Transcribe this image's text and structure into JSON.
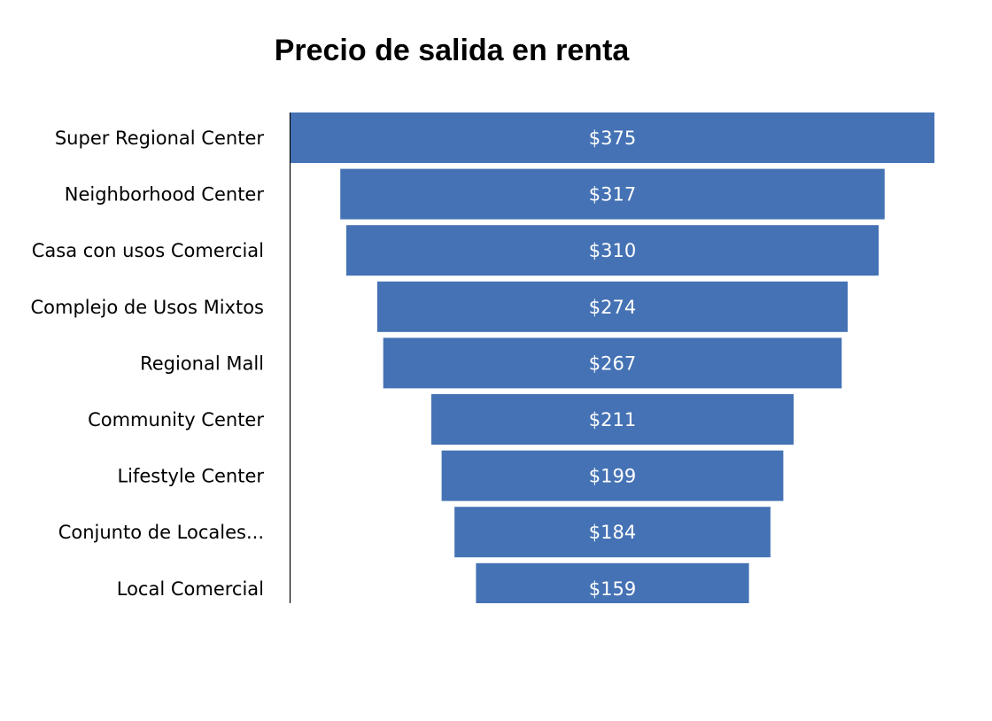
{
  "chart_data": {
    "type": "funnel",
    "title": "Precio de salida en renta",
    "categories": [
      "Super Regional Center",
      "Neighborhood Center",
      "Casa con usos Comercial",
      "Complejo de Usos Mixtos",
      "Regional Mall",
      "Community Center",
      "Lifestyle Center",
      "Conjunto de Locales...",
      "Local Comercial"
    ],
    "values": [
      375,
      317,
      310,
      274,
      267,
      211,
      199,
      184,
      159
    ],
    "data_labels": [
      "$375",
      "$317",
      "$310",
      "$274",
      "$267",
      "$211",
      "$199",
      "$184",
      "$159"
    ],
    "bar_color": "#4472b4",
    "grid": false,
    "legend": "none"
  }
}
